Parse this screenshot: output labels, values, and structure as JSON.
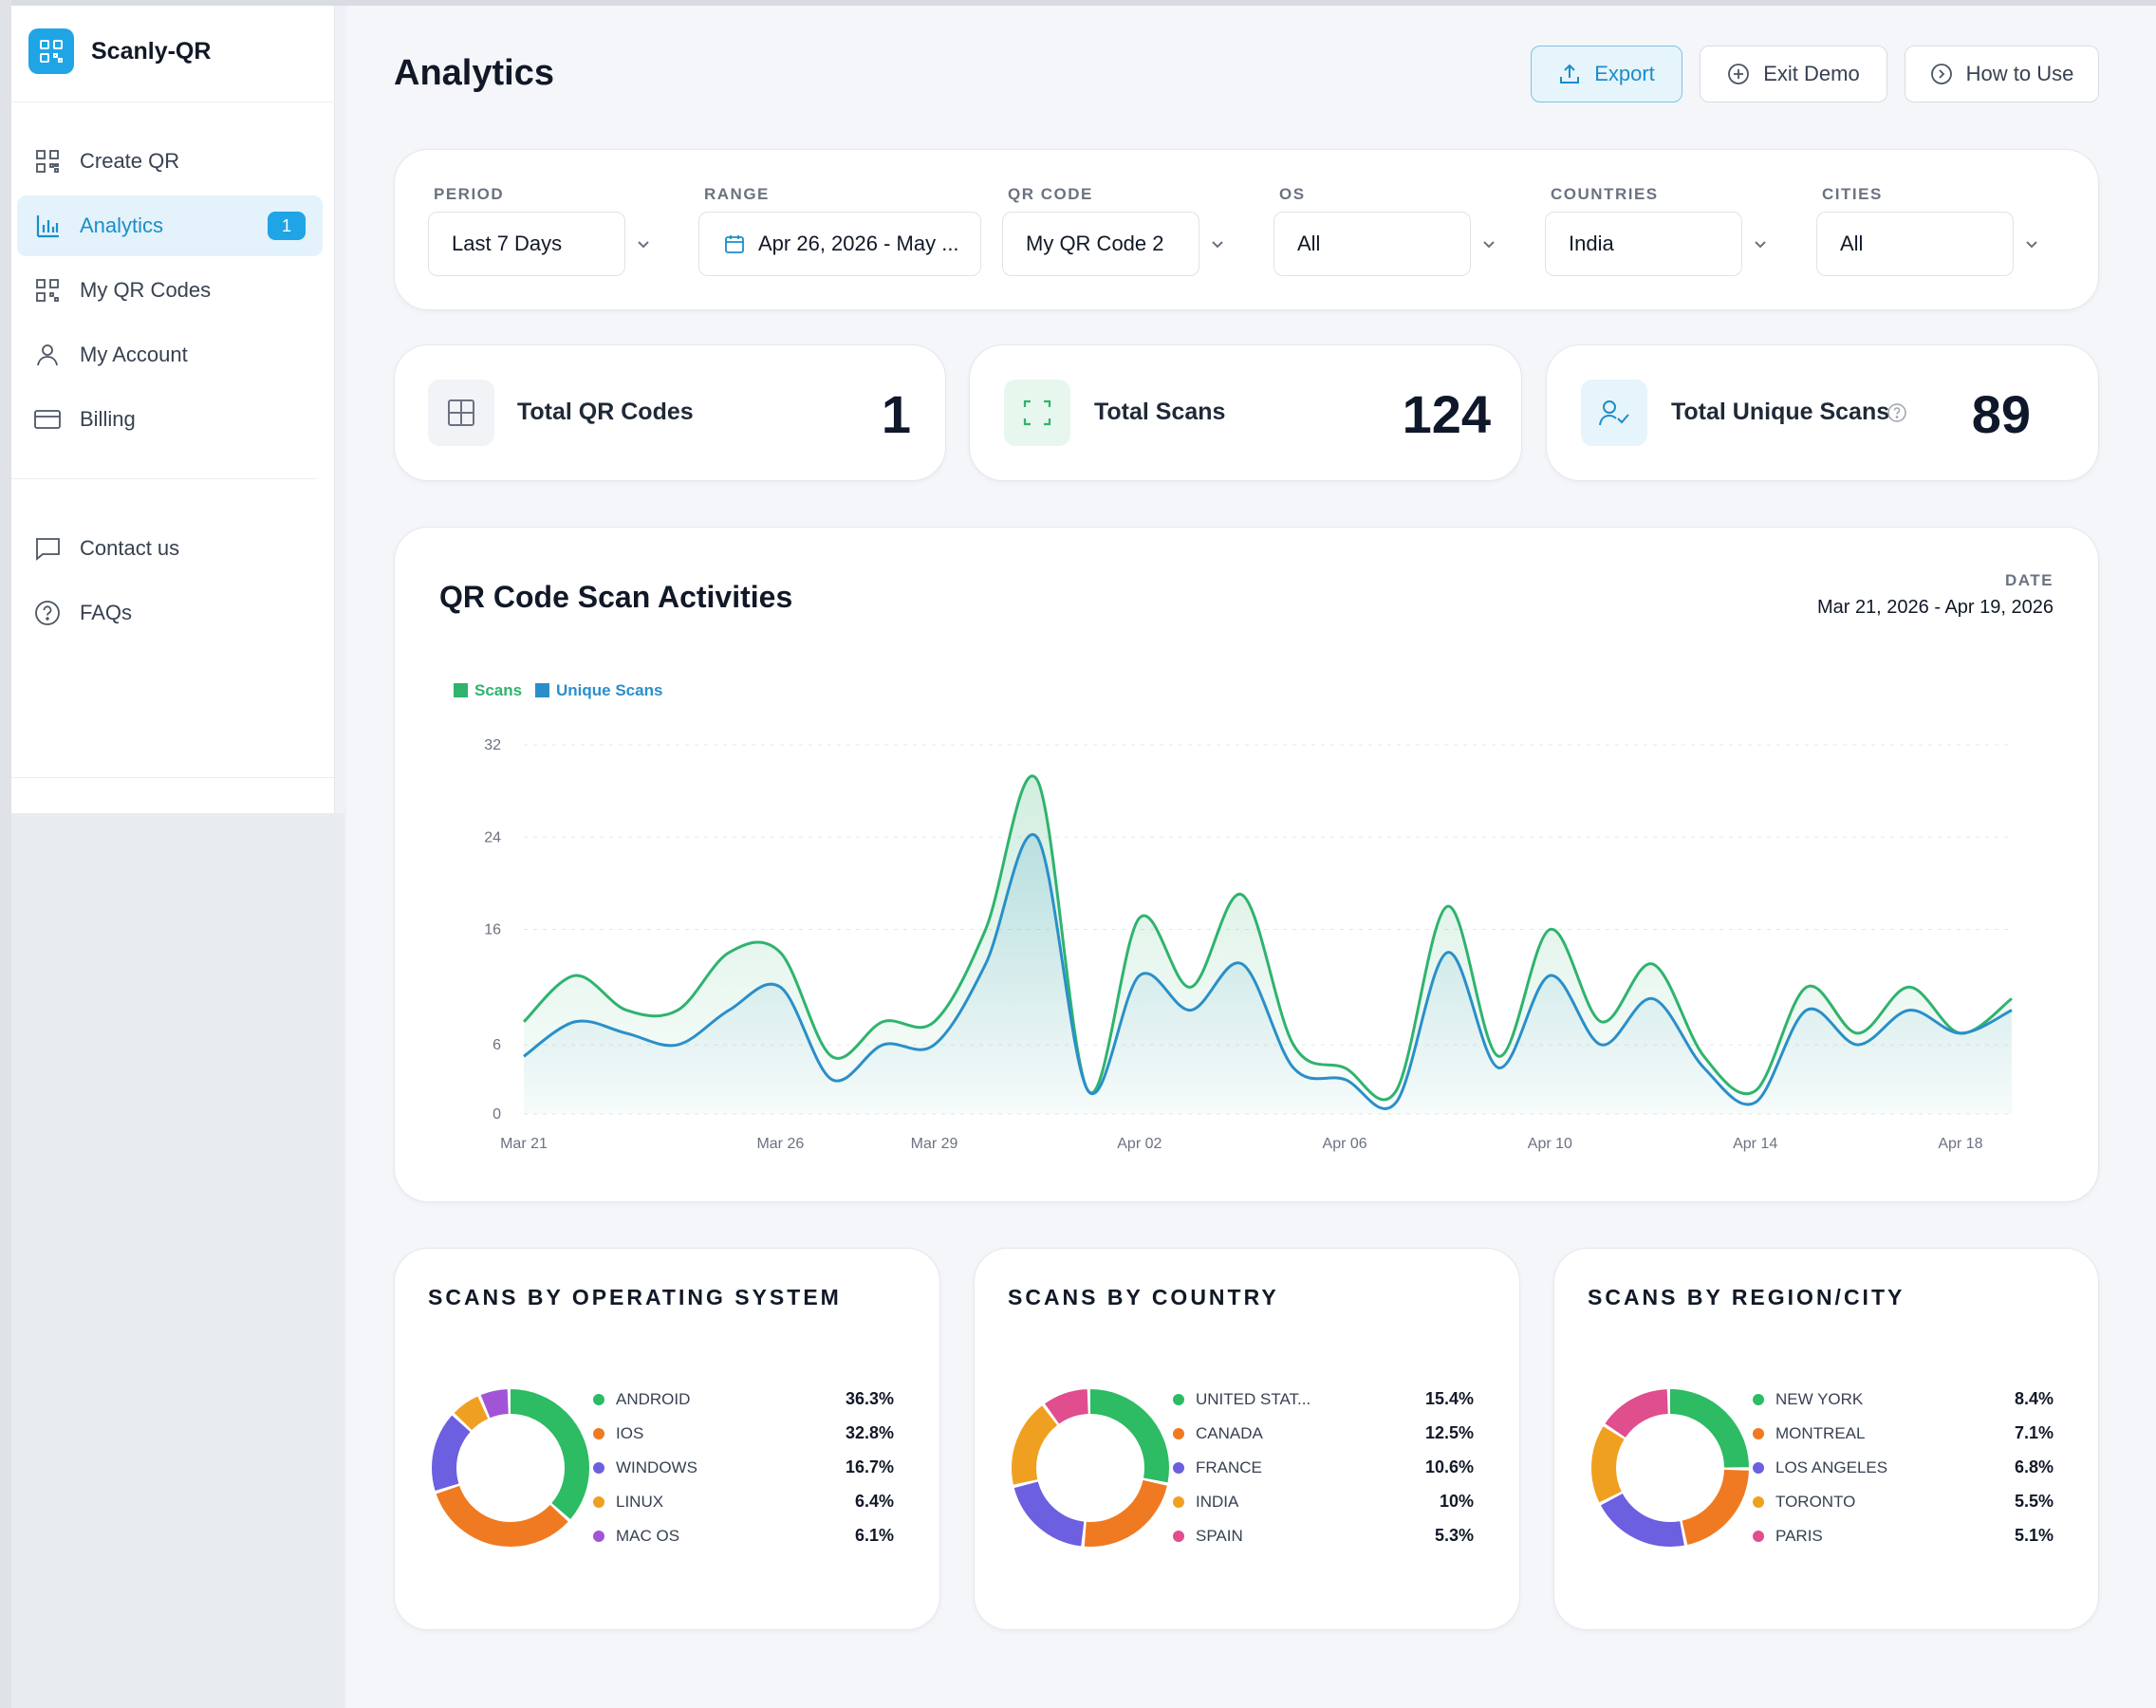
{
  "app": {
    "name": "Scanly-QR"
  },
  "colors": {
    "accent": "#1fa5e6",
    "scans": "#2fb36e",
    "unique_scans": "#2a8fc9"
  },
  "sidebar": {
    "items": [
      {
        "label": "Create QR",
        "icon": "qr-grid-icon"
      },
      {
        "label": "Analytics",
        "icon": "bar-chart-icon",
        "badge": "1",
        "active": true
      },
      {
        "label": "My QR Codes",
        "icon": "qr-grid-icon"
      },
      {
        "label": "My Account",
        "icon": "user-icon"
      },
      {
        "label": "Billing",
        "icon": "card-icon"
      }
    ],
    "secondary": [
      {
        "label": "Contact us",
        "icon": "chat-icon"
      },
      {
        "label": "FAQs",
        "icon": "help-icon"
      }
    ]
  },
  "header": {
    "title": "Analytics",
    "export_label": "Export",
    "exit_demo_label": "Exit Demo",
    "how_to_use_label": "How to Use"
  },
  "filters": {
    "period": {
      "label": "PERIOD",
      "value": "Last 7 Days"
    },
    "range": {
      "label": "RANGE",
      "value": "Apr 26, 2026 - May ..."
    },
    "qr_code": {
      "label": "QR CODE",
      "value": "My QR Code 2"
    },
    "os": {
      "label": "OS",
      "value": "All"
    },
    "countries": {
      "label": "COUNTRIES",
      "value": "India"
    },
    "cities": {
      "label": "CITIES",
      "value": "All"
    }
  },
  "stats": {
    "total_qr_codes": {
      "label": "Total QR Codes",
      "value": "1"
    },
    "total_scans": {
      "label": "Total Scans",
      "value": "124"
    },
    "total_unique_scans": {
      "label": "Total Unique Scans",
      "value": "89"
    }
  },
  "activity": {
    "title": "QR Code Scan Activities",
    "date_label": "DATE",
    "date_value": "Mar 21, 2026 - Apr 19, 2026"
  },
  "chart_data": [
    {
      "type": "area",
      "title": "QR Code Scan Activities",
      "x": [
        "Mar 21",
        "Mar 22",
        "Mar 23",
        "Mar 24",
        "Mar 25",
        "Mar 26",
        "Mar 27",
        "Mar 28",
        "Mar 29",
        "Mar 30",
        "Mar 31",
        "Apr 01",
        "Apr 02",
        "Apr 03",
        "Apr 04",
        "Apr 05",
        "Apr 06",
        "Apr 07",
        "Apr 08",
        "Apr 09",
        "Apr 10",
        "Apr 11",
        "Apr 12",
        "Apr 13",
        "Apr 14",
        "Apr 15",
        "Apr 16",
        "Apr 17",
        "Apr 18",
        "Apr 19"
      ],
      "x_tick_labels": [
        "Mar 21",
        "Mar 26",
        "Mar 29",
        "Apr 02",
        "Apr 06",
        "Apr 10",
        "Apr 14",
        "Apr 18"
      ],
      "y_tick_labels": [
        "0",
        "6",
        "16",
        "24",
        "32"
      ],
      "ylim": [
        0,
        32
      ],
      "grid": true,
      "legend": "top-left",
      "series": [
        {
          "name": "Scans",
          "color": "#2fb36e",
          "values": [
            8,
            12,
            9,
            9,
            14,
            14,
            5,
            8,
            8,
            16,
            29,
            2,
            17,
            11,
            19,
            6,
            4,
            2,
            18,
            5,
            16,
            8,
            13,
            5,
            2,
            11,
            7,
            11,
            7,
            10
          ]
        },
        {
          "name": "Unique Scans",
          "color": "#2a8fc9",
          "values": [
            5,
            8,
            7,
            6,
            9,
            11,
            3,
            6,
            6,
            13,
            24,
            2,
            12,
            9,
            13,
            4,
            3,
            1,
            14,
            4,
            12,
            6,
            10,
            4,
            1,
            9,
            6,
            9,
            7,
            9
          ]
        }
      ]
    },
    {
      "type": "pie",
      "title": "SCANS BY OPERATING SYSTEM",
      "categories": [
        "ANDROID",
        "IOS",
        "WINDOWS",
        "LINUX",
        "MAC OS"
      ],
      "labels": [
        "36.3%",
        "32.8%",
        "16.7%",
        "6.4%",
        "6.1%"
      ],
      "values": [
        36.3,
        32.8,
        16.7,
        6.4,
        6.1
      ],
      "colors": [
        "#2dbb63",
        "#f07a22",
        "#6c5fe0",
        "#f0a020",
        "#a155d6"
      ]
    },
    {
      "type": "pie",
      "title": "SCANS BY COUNTRY",
      "categories": [
        "UNITED STAT...",
        "CANADA",
        "FRANCE",
        "INDIA",
        "SPAIN"
      ],
      "labels": [
        "15.4%",
        "12.5%",
        "10.6%",
        "10%",
        "5.3%"
      ],
      "values": [
        15.4,
        12.5,
        10.6,
        10,
        5.3
      ],
      "colors": [
        "#2dbb63",
        "#f07a22",
        "#6c5fe0",
        "#f0a020",
        "#e04e8e"
      ]
    },
    {
      "type": "pie",
      "title": "SCANS BY REGION/CITY",
      "categories": [
        "NEW YORK",
        "MONTREAL",
        "LOS ANGELES",
        "TORONTO",
        "PARIS"
      ],
      "labels": [
        "8.4%",
        "7.1%",
        "6.8%",
        "5.5%",
        "5.1%"
      ],
      "values": [
        8.4,
        7.1,
        6.8,
        5.5,
        5.1
      ],
      "colors": [
        "#2dbb63",
        "#f07a22",
        "#6c5fe0",
        "#f0a020",
        "#e04e8e"
      ]
    }
  ]
}
